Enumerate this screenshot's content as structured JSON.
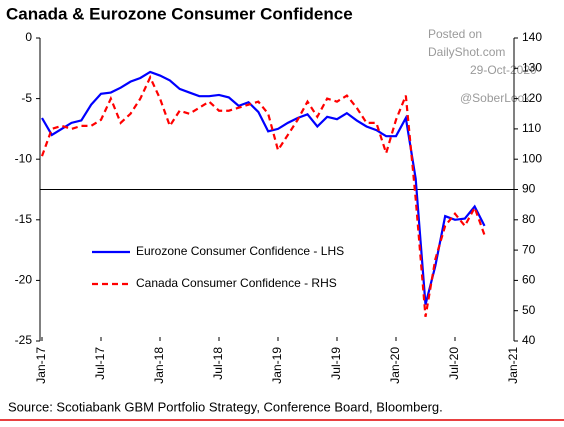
{
  "chart_data": {
    "type": "line",
    "title": "Canada & Eurozone Consumer Confidence",
    "annotations": [
      "Posted on",
      "DailyShot.com",
      "29-Oct-2020",
      "@SoberLook"
    ],
    "source": "Source: Scotiabank GBM Portfolio Strategy, Conference Board, Bloomberg.",
    "x": [
      "2017-01",
      "2017-02",
      "2017-03",
      "2017-04",
      "2017-05",
      "2017-06",
      "2017-07",
      "2017-08",
      "2017-09",
      "2017-10",
      "2017-11",
      "2017-12",
      "2018-01",
      "2018-02",
      "2018-03",
      "2018-04",
      "2018-05",
      "2018-06",
      "2018-07",
      "2018-08",
      "2018-09",
      "2018-10",
      "2018-11",
      "2018-12",
      "2019-01",
      "2019-02",
      "2019-03",
      "2019-04",
      "2019-05",
      "2019-06",
      "2019-07",
      "2019-08",
      "2019-09",
      "2019-10",
      "2019-11",
      "2019-12",
      "2020-01",
      "2020-02",
      "2020-03",
      "2020-04",
      "2020-05",
      "2020-06",
      "2020-07",
      "2020-08",
      "2020-09",
      "2020-10"
    ],
    "series": [
      {
        "name": "Eurozone Consumer Confidence - LHS",
        "color": "#0000ff",
        "axis": "y",
        "values": [
          -6.6,
          -8.0,
          -7.5,
          -7.0,
          -6.8,
          -5.5,
          -4.6,
          -4.5,
          -4.1,
          -3.6,
          -3.3,
          -2.8,
          -3.1,
          -3.5,
          -4.2,
          -4.5,
          -4.8,
          -4.8,
          -4.7,
          -4.9,
          -5.6,
          -5.3,
          -6.1,
          -7.7,
          -7.5,
          -7.0,
          -6.6,
          -6.3,
          -7.3,
          -6.5,
          -6.7,
          -6.2,
          -6.8,
          -7.3,
          -7.6,
          -8.1,
          -8.1,
          -6.6,
          -11.6,
          -22.0,
          -18.8,
          -14.7,
          -15.0,
          -14.9,
          -13.9,
          -15.5
        ]
      },
      {
        "name": "Canada Consumer Confidence - RHS",
        "color": "#ff0000",
        "axis": "y2",
        "values": [
          101,
          110,
          111,
          110,
          111,
          111,
          113,
          120,
          112,
          115,
          120,
          127,
          120,
          111,
          116,
          115,
          117,
          119,
          116,
          116,
          117,
          118,
          119,
          115,
          103,
          108,
          113,
          119,
          114,
          120,
          119,
          121,
          117,
          112,
          112,
          102,
          113,
          121,
          87,
          48,
          67,
          78,
          82,
          78,
          84,
          75
        ]
      }
    ],
    "ylim": [
      -25,
      0
    ],
    "yticks": [
      0,
      -5,
      -10,
      -15,
      -20,
      -25
    ],
    "y2lim": [
      40,
      140
    ],
    "y2ticks": [
      40,
      50,
      60,
      70,
      80,
      90,
      100,
      110,
      120,
      130,
      140
    ],
    "xticks": [
      {
        "value": "2017-01",
        "label": "Jan-17"
      },
      {
        "value": "2017-07",
        "label": "Jul-17"
      },
      {
        "value": "2018-01",
        "label": "Jan-18"
      },
      {
        "value": "2018-07",
        "label": "Jul-18"
      },
      {
        "value": "2019-01",
        "label": "Jan-19"
      },
      {
        "value": "2019-07",
        "label": "Jul-19"
      },
      {
        "value": "2020-01",
        "label": "Jan-20"
      },
      {
        "value": "2020-07",
        "label": "Jul-20"
      },
      {
        "value": "2021-01",
        "label": "Jan-21"
      }
    ]
  }
}
